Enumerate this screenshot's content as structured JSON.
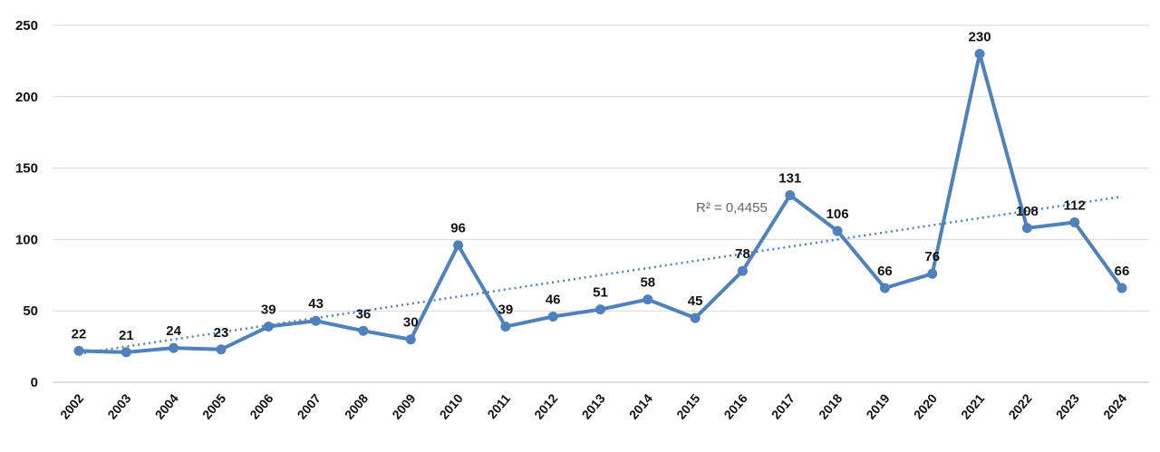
{
  "chart_data": {
    "type": "line",
    "title": "",
    "xlabel": "",
    "ylabel": "",
    "ylim": [
      0,
      250
    ],
    "yticks": [
      "0",
      "50",
      "100",
      "150",
      "200",
      "250"
    ],
    "grid": true,
    "categories": [
      "2002",
      "2003",
      "2004",
      "2005",
      "2006",
      "2007",
      "2008",
      "2009",
      "2010",
      "2011",
      "2012",
      "2013",
      "2014",
      "2015",
      "2016",
      "2017",
      "2018",
      "2019",
      "2020",
      "2021",
      "2022",
      "2023",
      "2024"
    ],
    "values": [
      22,
      21,
      24,
      23,
      39,
      43,
      36,
      30,
      96,
      39,
      46,
      51,
      58,
      45,
      78,
      131,
      106,
      66,
      76,
      230,
      108,
      112,
      66
    ],
    "series_color": "#4f81bd",
    "trendline": {
      "type": "linear",
      "start": 20,
      "end": 130,
      "r2_label": "R² = 0,4455"
    }
  }
}
